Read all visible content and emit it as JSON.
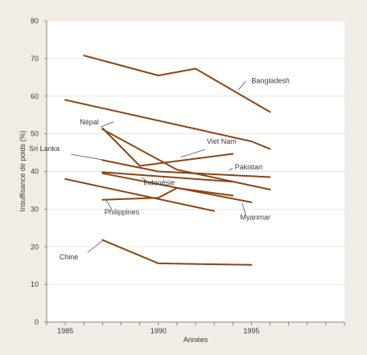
{
  "chart_data": {
    "type": "line",
    "xlabel": "Années",
    "ylabel": "Insuffisance de poids (%)",
    "xlim": [
      1984,
      2000
    ],
    "ylim": [
      0,
      80
    ],
    "x_ticks": [
      {
        "value": 1985,
        "label": "1985"
      },
      {
        "value": 1990,
        "label": "1990"
      },
      {
        "value": 1995,
        "label": "1995"
      }
    ],
    "y_ticks": [
      {
        "value": 0,
        "label": "0"
      },
      {
        "value": 10,
        "label": "10"
      },
      {
        "value": 20,
        "label": "20"
      },
      {
        "value": 30,
        "label": "30"
      },
      {
        "value": 40,
        "label": "40"
      },
      {
        "value": 50,
        "label": "50"
      },
      {
        "value": 60,
        "label": "60"
      },
      {
        "value": 70,
        "label": "70"
      },
      {
        "value": 80,
        "label": "80"
      }
    ],
    "grid": "horizontal",
    "colors": {
      "background": "#f1ede6",
      "plot_background": "#ffffff",
      "grid": "#e6ded5",
      "series": "#8b4513",
      "text": "#3a3a3a"
    },
    "series": [
      {
        "name": "Bangladesh",
        "points": [
          [
            1986,
            70.8
          ],
          [
            1990,
            65.5
          ],
          [
            1992,
            67.3
          ],
          [
            1996,
            55.8
          ]
        ]
      },
      {
        "name": "Népal",
        "points": [
          [
            1985,
            59.0
          ],
          [
            1995,
            48.0
          ],
          [
            1996,
            46.0
          ]
        ]
      },
      {
        "name": "Viet Nam",
        "points": [
          [
            1987,
            51.5
          ],
          [
            1989,
            41.5
          ],
          [
            1994,
            44.7
          ]
        ]
      },
      {
        "name": "Sri Lanka",
        "points": [
          [
            1987,
            43.0
          ],
          [
            1990,
            40.0
          ],
          [
            1996,
            38.5
          ]
        ]
      },
      {
        "name": "Pakistan",
        "points": [
          [
            1987,
            51.2
          ],
          [
            1991,
            40.5
          ],
          [
            1996,
            35.2
          ]
        ]
      },
      {
        "name": "Indonésie",
        "points": [
          [
            1987,
            39.8
          ],
          [
            1994,
            37.3
          ]
        ]
      },
      {
        "name": "Myanmar",
        "points": [
          [
            1987,
            39.5
          ],
          [
            1995,
            31.8
          ]
        ]
      },
      {
        "name": "Philippines",
        "points": [
          [
            1985,
            38.0
          ],
          [
            1993,
            29.5
          ]
        ]
      },
      {
        "name": "Philippines",
        "points": [
          [
            1987,
            32.5
          ],
          [
            1990,
            33.0
          ],
          [
            1991,
            35.6
          ],
          [
            1994,
            33.6
          ]
        ]
      },
      {
        "name": "Chine",
        "points": [
          [
            1987,
            21.8
          ],
          [
            1990,
            15.6
          ],
          [
            1995,
            15.2
          ]
        ]
      }
    ],
    "series_labels": [
      {
        "text": "Bangladesh"
      },
      {
        "text": "Népal"
      },
      {
        "text": "Viet Nam"
      },
      {
        "text": "Sri Lanka"
      },
      {
        "text": "Pakistan"
      },
      {
        "text": "Indonésie"
      },
      {
        "text": "Philippines"
      },
      {
        "text": "Myanmar"
      },
      {
        "text": "Chine"
      }
    ]
  }
}
